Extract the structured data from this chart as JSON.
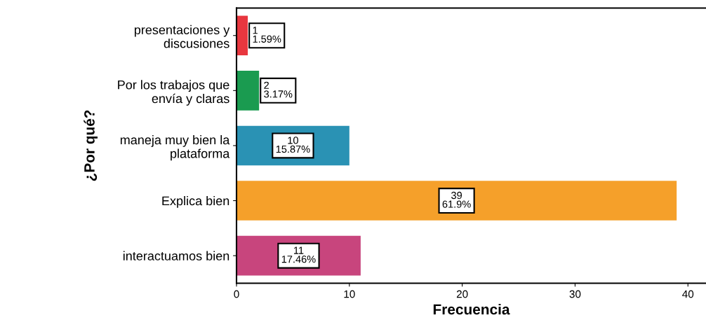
{
  "chart_data": {
    "type": "bar",
    "orientation": "horizontal",
    "xlabel": "Frecuencia",
    "ylabel": "¿Por qué?",
    "categories": [
      "presentaciones y\ndiscusiones",
      "Por los trabajos que\nenvía y claras",
      "maneja muy bien la\nplataforma",
      "Explica bien",
      "interactuamos bien"
    ],
    "values": [
      1,
      2,
      10,
      39,
      11
    ],
    "colors": [
      "#e8373f",
      "#1a9b50",
      "#2a92b4",
      "#f5a02a",
      "#c8457d"
    ],
    "value_labels": [
      "1\n1.59%",
      "2\n3.17%",
      "10\n15.87%",
      "39\n61.9%",
      "11\n17.46%"
    ],
    "xlim": [
      0,
      41.6
    ],
    "xticks": [
      0,
      10,
      20,
      30,
      40
    ],
    "grid": false,
    "legend": false
  }
}
